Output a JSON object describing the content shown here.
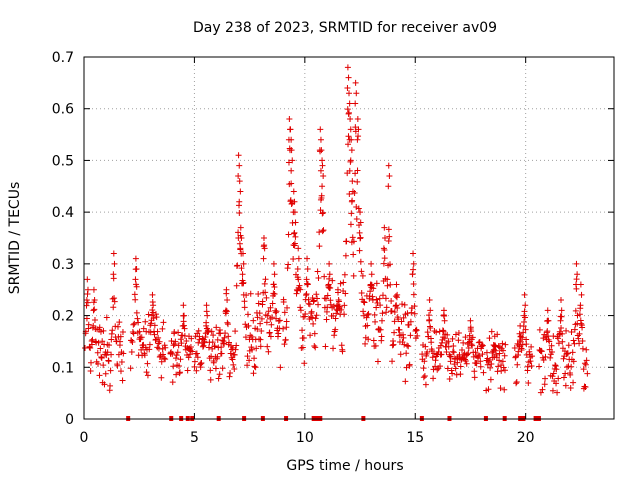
{
  "chart_data": {
    "type": "scatter",
    "title": "Day 238 of 2023, SRMTID for receiver av09",
    "xlabel": "GPS time / hours",
    "ylabel": "SRMTID / TECUs",
    "xlim": [
      0,
      24
    ],
    "ylim": [
      0,
      0.7
    ],
    "xticks": [
      0,
      5,
      10,
      15,
      20
    ],
    "yticks": [
      0,
      0.1,
      0.2,
      0.3,
      0.4,
      0.5,
      0.6,
      0.7
    ],
    "xtick_labels": [
      "0",
      "5",
      "10",
      "15",
      "20"
    ],
    "ytick_labels": [
      "0",
      "0.1",
      "0.2",
      "0.3",
      "0.4",
      "0.5",
      "0.6",
      "0.7"
    ],
    "grid": true,
    "marker": "plus",
    "color": "#e00000",
    "series": [
      {
        "name": "SRMTID",
        "segments": [
          {
            "start": 0.0,
            "end": 1.8,
            "base": 0.12,
            "spread": 0.07,
            "peaks": [
              [
                0.15,
                0.27
              ],
              [
                0.45,
                0.25
              ],
              [
                1.35,
                0.32
              ]
            ]
          },
          {
            "start": 2.1,
            "end": 3.7,
            "base": 0.14,
            "spread": 0.06,
            "peaks": [
              [
                2.35,
                0.31
              ],
              [
                3.1,
                0.24
              ]
            ]
          },
          {
            "start": 3.9,
            "end": 4.9,
            "base": 0.13,
            "spread": 0.05,
            "peaks": [
              [
                4.5,
                0.22
              ]
            ]
          },
          {
            "start": 5.0,
            "end": 6.9,
            "base": 0.13,
            "spread": 0.06,
            "peaks": [
              [
                5.55,
                0.22
              ],
              [
                6.45,
                0.25
              ]
            ]
          },
          {
            "start": 6.9,
            "end": 8.9,
            "base": 0.17,
            "spread": 0.08,
            "peaks": [
              [
                7.0,
                0.51
              ],
              [
                7.05,
                0.46
              ],
              [
                7.1,
                0.37
              ],
              [
                7.2,
                0.32
              ],
              [
                8.15,
                0.35
              ],
              [
                8.6,
                0.3
              ]
            ]
          },
          {
            "start": 9.0,
            "end": 10.3,
            "base": 0.18,
            "spread": 0.09,
            "peaks": [
              [
                9.3,
                0.58
              ],
              [
                9.35,
                0.56
              ],
              [
                9.4,
                0.52
              ],
              [
                9.5,
                0.44
              ],
              [
                9.55,
                0.4
              ],
              [
                9.7,
                0.33
              ],
              [
                10.1,
                0.31
              ]
            ]
          },
          {
            "start": 10.3,
            "end": 11.7,
            "base": 0.19,
            "spread": 0.09,
            "peaks": [
              [
                10.7,
                0.56
              ],
              [
                10.75,
                0.52
              ],
              [
                10.8,
                0.49
              ],
              [
                11.1,
                0.3
              ],
              [
                11.5,
                0.25
              ]
            ]
          },
          {
            "start": 11.7,
            "end": 13.3,
            "base": 0.2,
            "spread": 0.09,
            "peaks": [
              [
                11.95,
                0.68
              ],
              [
                12.0,
                0.63
              ],
              [
                12.05,
                0.58
              ],
              [
                12.1,
                0.54
              ],
              [
                12.15,
                0.46
              ],
              [
                12.3,
                0.65
              ],
              [
                12.4,
                0.58
              ],
              [
                12.5,
                0.4
              ],
              [
                13.0,
                0.3
              ]
            ]
          },
          {
            "start": 13.3,
            "end": 15.1,
            "base": 0.16,
            "spread": 0.07,
            "peaks": [
              [
                13.6,
                0.37
              ],
              [
                13.8,
                0.49
              ],
              [
                14.15,
                0.26
              ],
              [
                14.9,
                0.32
              ]
            ]
          },
          {
            "start": 15.3,
            "end": 16.8,
            "base": 0.12,
            "spread": 0.06,
            "peaks": [
              [
                15.65,
                0.23
              ],
              [
                16.3,
                0.21
              ]
            ]
          },
          {
            "start": 16.8,
            "end": 18.1,
            "base": 0.12,
            "spread": 0.05,
            "peaks": [
              [
                17.5,
                0.19
              ]
            ]
          },
          {
            "start": 18.2,
            "end": 19.1,
            "base": 0.11,
            "spread": 0.05,
            "peaks": [
              [
                18.6,
                0.16
              ]
            ]
          },
          {
            "start": 19.5,
            "end": 20.3,
            "base": 0.11,
            "spread": 0.06,
            "peaks": [
              [
                19.95,
                0.24
              ],
              [
                19.75,
                0.18
              ]
            ]
          },
          {
            "start": 20.6,
            "end": 22.8,
            "base": 0.11,
            "spread": 0.06,
            "peaks": [
              [
                21.0,
                0.21
              ],
              [
                21.6,
                0.23
              ],
              [
                22.3,
                0.3
              ],
              [
                22.5,
                0.26
              ]
            ]
          }
        ]
      }
    ],
    "baseline_marks": [
      2.0,
      3.95,
      4.4,
      4.7,
      4.9,
      6.1,
      7.25,
      8.1,
      9.15,
      10.4,
      10.5,
      10.6,
      10.7,
      12.65,
      15.3,
      16.55,
      18.2,
      19.05,
      19.75,
      19.9,
      20.45,
      20.6
    ]
  }
}
